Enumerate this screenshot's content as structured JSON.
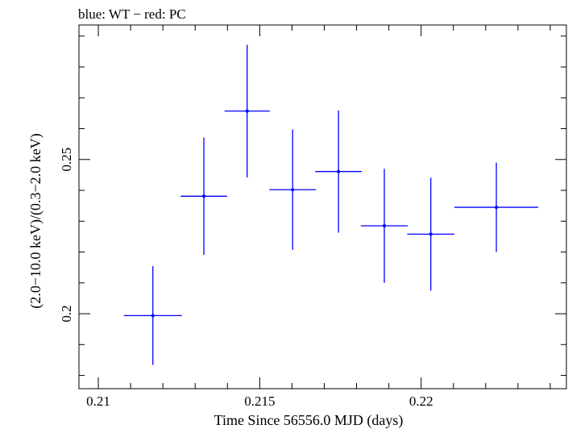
{
  "chart_data": {
    "type": "scatter",
    "title": "blue: WT − red: PC",
    "xlabel": "Time Since 56556.0 MJD (days)",
    "ylabel": "(2.0−10.0 keV)/(0.3−2.0 keV)",
    "xlim": [
      0.2094,
      0.2245
    ],
    "ylim": [
      0.1757,
      0.2936
    ],
    "x_ticks": [
      {
        "value": 0.21,
        "label": "0.21"
      },
      {
        "value": 0.215,
        "label": "0.215"
      },
      {
        "value": 0.22,
        "label": "0.22"
      }
    ],
    "y_ticks": [
      {
        "value": 0.2,
        "label": "0.2"
      },
      {
        "value": 0.25,
        "label": "0.25"
      }
    ],
    "x_minor_step": 0.001,
    "y_minor_step": 0.01,
    "series": [
      {
        "color": "#0000ff",
        "points": [
          {
            "x": 0.21169,
            "xerr": 0.0009,
            "y": 0.1994,
            "yerr": 0.016
          },
          {
            "x": 0.21327,
            "xerr": 0.00072,
            "y": 0.2381,
            "yerr": 0.019
          },
          {
            "x": 0.21461,
            "xerr": 0.0007,
            "y": 0.2657,
            "yerr": 0.0215
          },
          {
            "x": 0.21602,
            "xerr": 0.00072,
            "y": 0.2402,
            "yerr": 0.0195
          },
          {
            "x": 0.21744,
            "xerr": 0.00072,
            "y": 0.2461,
            "yerr": 0.0198
          },
          {
            "x": 0.21886,
            "xerr": 0.00073,
            "y": 0.2285,
            "yerr": 0.0185
          },
          {
            "x": 0.2203,
            "xerr": 0.00073,
            "y": 0.2258,
            "yerr": 0.0183
          },
          {
            "x": 0.22233,
            "xerr": 0.0013,
            "y": 0.2345,
            "yerr": 0.0145
          }
        ]
      }
    ]
  }
}
